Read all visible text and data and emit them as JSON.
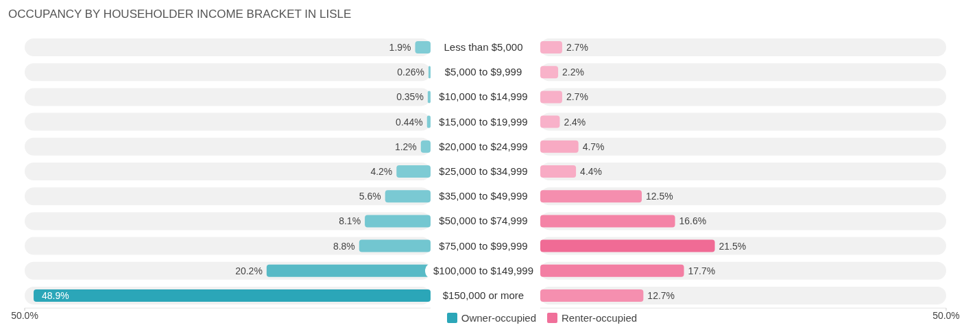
{
  "chart_data": [
    {
      "type": "bar",
      "orientation": "horizontal",
      "title": "OCCUPANCY BY HOUSEHOLDER INCOME BRACKET IN LISLE",
      "categories": [
        "Less than $5,000",
        "$5,000 to $9,999",
        "$10,000 to $14,999",
        "$15,000 to $19,999",
        "$20,000 to $24,999",
        "$25,000 to $34,999",
        "$35,000 to $49,999",
        "$50,000 to $74,999",
        "$75,000 to $99,999",
        "$100,000 to $149,999",
        "$150,000 or more"
      ],
      "xlim": [
        50,
        0
      ],
      "xticks": [
        {
          "value": 50,
          "label": "50.0%"
        }
      ],
      "series": [
        {
          "name": "Owner-occupied",
          "color": "#2ba6b8",
          "colors": [
            "#80ccd5",
            "#80ccd5",
            "#80ccd5",
            "#80ccd5",
            "#80ccd5",
            "#7ecbd4",
            "#7ac9d3",
            "#74c7d1",
            "#72c6d0",
            "#58bac6",
            "#2ba6b8"
          ],
          "values": [
            1.9,
            0.26,
            0.35,
            0.44,
            1.2,
            4.2,
            5.6,
            8.1,
            8.8,
            20.2,
            48.9
          ],
          "value_labels": [
            "1.9%",
            "0.26%",
            "0.35%",
            "0.44%",
            "1.2%",
            "4.2%",
            "5.6%",
            "8.1%",
            "8.8%",
            "20.2%",
            "48.9%"
          ]
        }
      ],
      "legend": "bottom"
    },
    {
      "type": "bar",
      "orientation": "horizontal",
      "categories": [
        null,
        null,
        null,
        null,
        null,
        null,
        null,
        null,
        null,
        null,
        null
      ],
      "tick_labels": "x",
      "xlim": [
        0,
        50
      ],
      "xticks": [
        {
          "value": 50,
          "label": "50.0%"
        }
      ],
      "series": [
        {
          "name": "Renter-occupied",
          "color": "#f0709a",
          "colors": [
            "#f8b0c8",
            "#f8b2c9",
            "#f8b0c8",
            "#f8b1c9",
            "#f8aac3",
            "#f8abc4",
            "#f58eae",
            "#f483a6",
            "#f06b95",
            "#f37ea3",
            "#f58faf"
          ],
          "values": [
            2.7,
            2.2,
            2.7,
            2.4,
            4.7,
            4.4,
            12.5,
            16.6,
            21.5,
            17.7,
            12.7
          ],
          "value_labels": [
            "2.7%",
            "2.2%",
            "2.7%",
            "2.4%",
            "4.7%",
            "4.4%",
            "12.5%",
            "16.6%",
            "21.5%",
            "17.7%",
            "12.7%"
          ]
        }
      ],
      "legend": "bottom"
    }
  ]
}
